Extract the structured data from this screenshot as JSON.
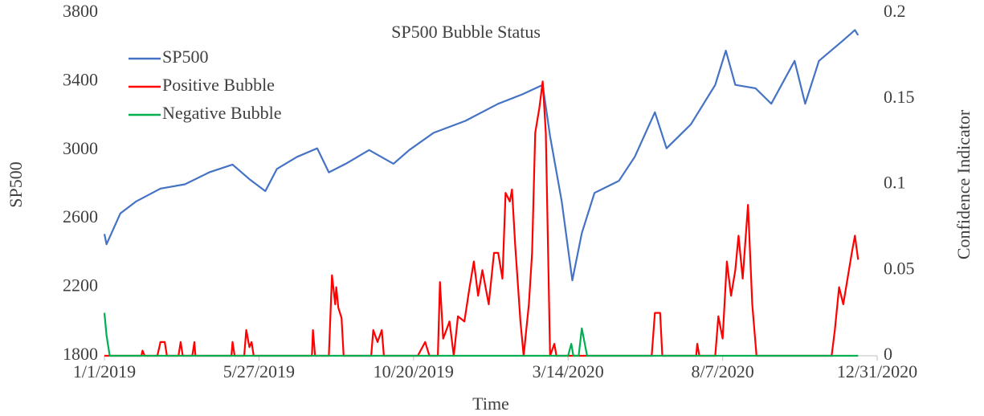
{
  "chart_data": {
    "type": "line",
    "title": "SP500 Bubble Status",
    "xlabel": "Time",
    "ylabel": "SP500",
    "y2label": "Confidence Indicator",
    "xlim": [
      "2019-01-01",
      "2020-12-31"
    ],
    "xticks": [
      {
        "value": "2019-01-01",
        "label": "1/1/2019"
      },
      {
        "value": "2019-05-27",
        "label": "5/27/2019"
      },
      {
        "value": "2019-10-20",
        "label": "10/20/2019"
      },
      {
        "value": "2020-03-14",
        "label": "3/14/2020"
      },
      {
        "value": "2020-08-07",
        "label": "8/7/2020"
      },
      {
        "value": "2020-12-31",
        "label": "12/31/2020"
      }
    ],
    "ylim": [
      1800,
      3800
    ],
    "yticks": [
      1800,
      2200,
      2600,
      3000,
      3400,
      3800
    ],
    "y2lim": [
      0,
      0.2
    ],
    "y2ticks": [
      0,
      0.05,
      0.1,
      0.15,
      0.2
    ],
    "legend": "upper left",
    "grid": false,
    "series": [
      {
        "name": "SP500",
        "color": "#4472c4",
        "x": [
          "2019-01-01",
          "2019-01-03",
          "2019-01-16",
          "2019-01-31",
          "2019-02-23",
          "2019-03-18",
          "2019-04-10",
          "2019-05-02",
          "2019-05-18",
          "2019-06-02",
          "2019-06-13",
          "2019-07-02",
          "2019-07-21",
          "2019-08-01",
          "2019-08-17",
          "2019-09-08",
          "2019-10-01",
          "2019-10-16",
          "2019-11-08",
          "2019-12-08",
          "2020-01-08",
          "2020-01-31",
          "2020-02-19",
          "2020-02-26",
          "2020-03-08",
          "2020-03-18",
          "2020-03-27",
          "2020-04-08",
          "2020-05-01",
          "2020-05-16",
          "2020-06-04",
          "2020-06-15",
          "2020-07-08",
          "2020-07-31",
          "2020-08-10",
          "2020-08-19",
          "2020-09-07",
          "2020-09-22",
          "2020-10-14",
          "2020-10-24",
          "2020-11-06",
          "2020-11-29",
          "2020-12-10",
          "2020-12-13"
        ],
        "values": [
          2510,
          2450,
          2630,
          2700,
          2775,
          2800,
          2870,
          2915,
          2830,
          2760,
          2890,
          2960,
          3010,
          2870,
          2920,
          3000,
          2920,
          3000,
          3100,
          3170,
          3270,
          3325,
          3380,
          3080,
          2700,
          2240,
          2515,
          2750,
          2820,
          2960,
          3220,
          3010,
          3150,
          3380,
          3580,
          3380,
          3360,
          3270,
          3520,
          3270,
          3520,
          3640,
          3700,
          3670
        ]
      },
      {
        "name": "Positive Bubble",
        "color": "#ff0000",
        "axis": "y2",
        "x": [
          "2019-01-01",
          "2019-02-05",
          "2019-02-06",
          "2019-02-08",
          "2019-02-20",
          "2019-02-23",
          "2019-02-27",
          "2019-03-01",
          "2019-03-12",
          "2019-03-14",
          "2019-03-16",
          "2019-03-25",
          "2019-03-27",
          "2019-03-28",
          "2019-05-01",
          "2019-05-02",
          "2019-05-04",
          "2019-05-13",
          "2019-05-15",
          "2019-05-18",
          "2019-05-20",
          "2019-05-22",
          "2019-07-16",
          "2019-07-17",
          "2019-07-19",
          "2019-08-01",
          "2019-08-04",
          "2019-08-07",
          "2019-08-08",
          "2019-08-10",
          "2019-08-13",
          "2019-08-15",
          "2019-09-10",
          "2019-09-12",
          "2019-09-16",
          "2019-09-20",
          "2019-09-22",
          "2019-10-24",
          "2019-10-31",
          "2019-11-04",
          "2019-11-12",
          "2019-11-14",
          "2019-11-17",
          "2019-11-20",
          "2019-11-23",
          "2019-11-27",
          "2019-12-01",
          "2019-12-07",
          "2019-12-12",
          "2019-12-16",
          "2019-12-20",
          "2019-12-24",
          "2019-12-30",
          "2020-01-04",
          "2020-01-08",
          "2020-01-12",
          "2020-01-15",
          "2020-01-19",
          "2020-01-21",
          "2020-01-24",
          "2020-01-29",
          "2020-02-01",
          "2020-02-06",
          "2020-02-09",
          "2020-02-12",
          "2020-02-16",
          "2020-02-19",
          "2020-02-22",
          "2020-02-26",
          "2020-03-01",
          "2020-03-03",
          "2020-06-01",
          "2020-06-04",
          "2020-06-09",
          "2020-06-11",
          "2020-07-13",
          "2020-07-14",
          "2020-07-16",
          "2020-07-31",
          "2020-08-03",
          "2020-08-07",
          "2020-08-11",
          "2020-08-15",
          "2020-08-19",
          "2020-08-22",
          "2020-08-26",
          "2020-08-31",
          "2020-09-04",
          "2020-09-08",
          "2020-11-18",
          "2020-11-21",
          "2020-11-25",
          "2020-11-29",
          "2020-12-03",
          "2020-12-07",
          "2020-12-10",
          "2020-12-13"
        ],
        "values": [
          0,
          0,
          0.003,
          0,
          0,
          0.008,
          0.008,
          0,
          0,
          0.008,
          0,
          0,
          0.008,
          0,
          0,
          0.008,
          0,
          0,
          0.015,
          0.005,
          0.008,
          0,
          0,
          0.015,
          0,
          0,
          0.047,
          0.03,
          0.04,
          0.028,
          0.022,
          0,
          0,
          0.015,
          0.008,
          0.015,
          0,
          0,
          0.008,
          0,
          0,
          0.043,
          0.01,
          0.015,
          0.02,
          0,
          0.023,
          0.02,
          0.04,
          0.055,
          0.035,
          0.05,
          0.03,
          0.06,
          0.06,
          0.045,
          0.095,
          0.09,
          0.097,
          0.065,
          0.02,
          0,
          0.03,
          0.06,
          0.13,
          0.145,
          0.16,
          0.13,
          0,
          0.007,
          0,
          0,
          0.025,
          0.025,
          0,
          0,
          0.007,
          0,
          0,
          0.023,
          0.01,
          0.055,
          0.035,
          0.05,
          0.07,
          0.045,
          0.088,
          0.03,
          0,
          0,
          0.015,
          0.04,
          0.03,
          0.045,
          0.06,
          0.07,
          0.056
        ]
      },
      {
        "name": "Negative Bubble",
        "color": "#00b050",
        "axis": "y2",
        "x": [
          "2019-01-01",
          "2019-01-03",
          "2019-01-06",
          "2020-03-14",
          "2020-03-17",
          "2020-03-19",
          "2020-03-24",
          "2020-03-27",
          "2020-04-01",
          "2020-12-13"
        ],
        "values": [
          0.025,
          0.012,
          0,
          0,
          0.007,
          0,
          0,
          0.016,
          0,
          0
        ]
      }
    ]
  }
}
